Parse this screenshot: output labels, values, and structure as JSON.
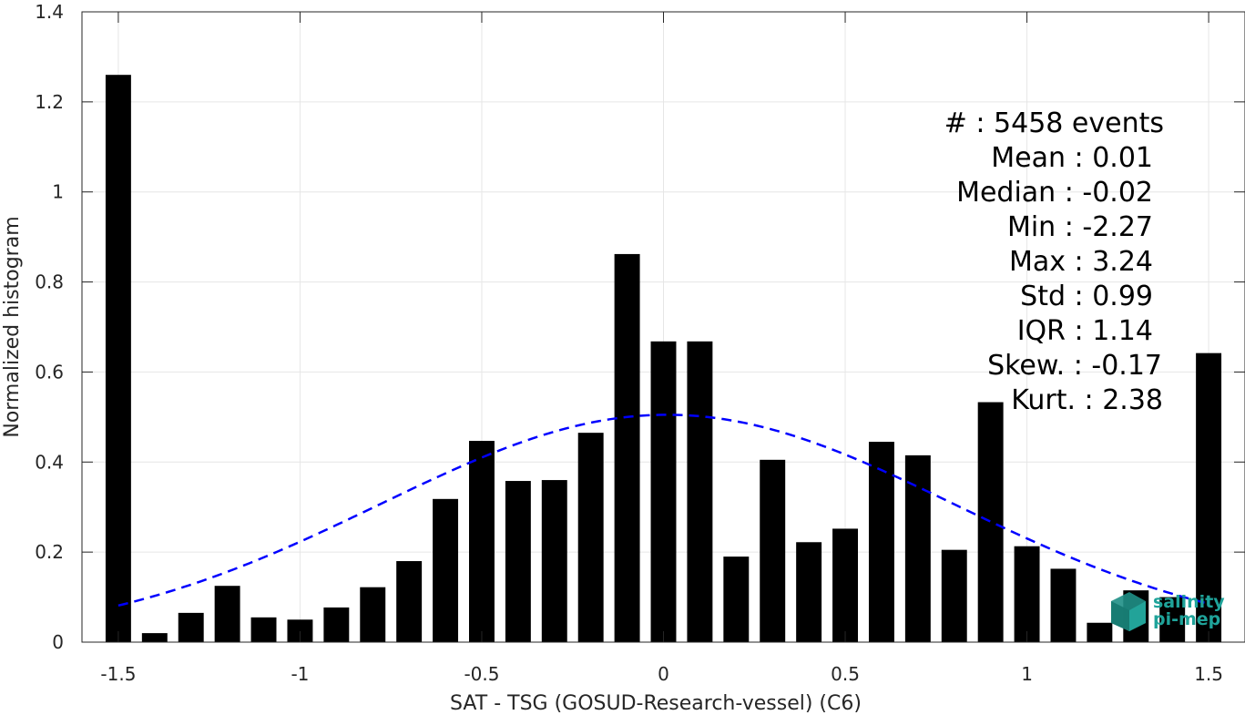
{
  "chart_data": {
    "type": "bar",
    "xlabel": "SAT - TSG (GOSUD-Research-vessel) (C6)",
    "ylabel": "Normalized histogram",
    "xlim": [
      -1.6,
      1.6
    ],
    "ylim": [
      0,
      1.4
    ],
    "grid": true,
    "bar_width": 0.07,
    "x_ticks": [
      -1.5,
      -1,
      -0.5,
      0,
      0.5,
      1,
      1.5
    ],
    "x_tick_labels": [
      "-1.5",
      "-1",
      "-0.5",
      "0",
      "0.5",
      "1",
      "1.5"
    ],
    "y_ticks": [
      0,
      0.2,
      0.4,
      0.6,
      0.8,
      1,
      1.2,
      1.4
    ],
    "y_tick_labels": [
      "0",
      "0.2",
      "0.4",
      "0.6",
      "0.8",
      "1",
      "1.2",
      "1.4"
    ],
    "bins": [
      -1.5,
      -1.4,
      -1.3,
      -1.2,
      -1.1,
      -1.0,
      -0.9,
      -0.8,
      -0.7,
      -0.6,
      -0.5,
      -0.4,
      -0.3,
      -0.2,
      -0.1,
      0.0,
      0.1,
      0.2,
      0.3,
      0.4,
      0.5,
      0.6,
      0.7,
      0.8,
      0.9,
      1.0,
      1.1,
      1.2,
      1.3,
      1.4,
      1.5
    ],
    "values": [
      1.26,
      0.02,
      0.065,
      0.125,
      0.055,
      0.05,
      0.077,
      0.122,
      0.18,
      0.318,
      0.447,
      0.358,
      0.36,
      0.465,
      0.862,
      0.668,
      0.668,
      0.19,
      0.405,
      0.222,
      0.252,
      0.445,
      0.415,
      0.205,
      0.533,
      0.213,
      0.163,
      0.043,
      0.115,
      0.1,
      0.642
    ],
    "bar_color": "#000000",
    "fit": {
      "type": "normal",
      "mean": 0.01,
      "std": 0.79,
      "peak": 0.505,
      "range": [
        -1.5,
        1.5
      ],
      "color": "#0000ff",
      "style": "dashed"
    }
  },
  "stats": [
    "#  : 5458 events",
    "Mean : 0.01",
    "Median : -0.02",
    "Min : -2.27",
    "Max : 3.24",
    "Std : 0.99",
    "IQR : 1.14",
    "Skew. : -0.17",
    "Kurt. : 2.38"
  ],
  "logo": {
    "line1": "salinity",
    "line2": "pi-mep",
    "color": "#1fa39a"
  }
}
